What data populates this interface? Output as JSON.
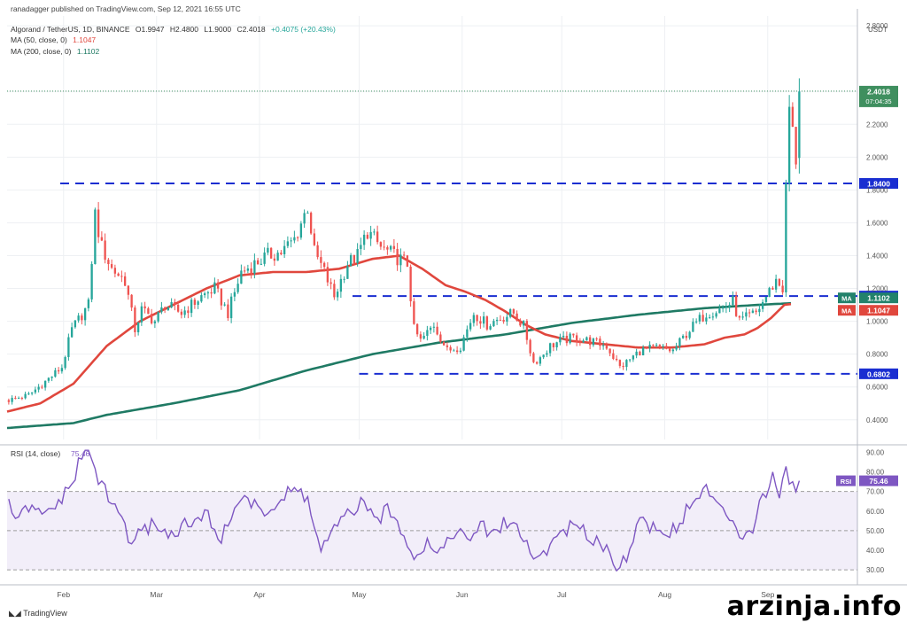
{
  "header": {
    "published": "ranadagger published on TradingView.com, Sep 12, 2021 16:55 UTC",
    "symbol_line": "Algorand / TetherUS, 1D, BINANCE",
    "ohlc": {
      "o": "O1.9947",
      "h": "H2.4800",
      "l": "L1.9000",
      "c": "C2.4018",
      "chg": "+0.4075 (+20.43%)"
    },
    "ma50_label": "MA (50, close, 0)",
    "ma50_value": "1.1047",
    "ma200_label": "MA (200, close, 0)",
    "ma200_value": "1.1102"
  },
  "footer": {
    "logo_text": "TradingView",
    "watermark": "arzinja.info"
  },
  "chart_data": [
    {
      "type": "candlestick",
      "currency": "USDT",
      "ylim": [
        0.28,
        2.86
      ],
      "y_ticks": [
        "2.8000",
        "2.4000",
        "2.2000",
        "2.0000",
        "1.8000",
        "1.6000",
        "1.4000",
        "1.2000",
        "1.0000",
        "0.8000",
        "0.6000",
        "0.4000"
      ],
      "x_ticks": [
        {
          "label": "Feb",
          "day": 17
        },
        {
          "label": "Mar",
          "day": 45
        },
        {
          "label": "Apr",
          "day": 76
        },
        {
          "label": "May",
          "day": 106
        },
        {
          "label": "Jun",
          "day": 137
        },
        {
          "label": "Jul",
          "day": 167
        },
        {
          "label": "Aug",
          "day": 198
        },
        {
          "label": "Sep",
          "day": 229
        }
      ],
      "days_total": 256,
      "close_anchors": [
        [
          0,
          0.52
        ],
        [
          6,
          0.55
        ],
        [
          12,
          0.65
        ],
        [
          16,
          0.72
        ],
        [
          19,
          0.95
        ],
        [
          24,
          1.1
        ],
        [
          26,
          1.65
        ],
        [
          28,
          1.45
        ],
        [
          31,
          1.32
        ],
        [
          35,
          1.25
        ],
        [
          38,
          0.95
        ],
        [
          40,
          1.07
        ],
        [
          44,
          1.0
        ],
        [
          47,
          1.1
        ],
        [
          52,
          1.05
        ],
        [
          58,
          1.15
        ],
        [
          62,
          1.2
        ],
        [
          66,
          1.05
        ],
        [
          70,
          1.3
        ],
        [
          74,
          1.35
        ],
        [
          78,
          1.4
        ],
        [
          82,
          1.42
        ],
        [
          86,
          1.5
        ],
        [
          90,
          1.7
        ],
        [
          92,
          1.42
        ],
        [
          95,
          1.3
        ],
        [
          98,
          1.15
        ],
        [
          102,
          1.35
        ],
        [
          105,
          1.4
        ],
        [
          108,
          1.55
        ],
        [
          112,
          1.45
        ],
        [
          116,
          1.4
        ],
        [
          120,
          1.35
        ],
        [
          122,
          0.95
        ],
        [
          124,
          0.88
        ],
        [
          128,
          0.98
        ],
        [
          132,
          0.82
        ],
        [
          136,
          0.85
        ],
        [
          140,
          1.05
        ],
        [
          144,
          0.98
        ],
        [
          148,
          1.02
        ],
        [
          152,
          1.05
        ],
        [
          155,
          0.97
        ],
        [
          158,
          0.75
        ],
        [
          160,
          0.78
        ],
        [
          163,
          0.85
        ],
        [
          166,
          0.88
        ],
        [
          170,
          0.9
        ],
        [
          175,
          0.88
        ],
        [
          180,
          0.85
        ],
        [
          184,
          0.72
        ],
        [
          186,
          0.75
        ],
        [
          190,
          0.82
        ],
        [
          195,
          0.84
        ],
        [
          200,
          0.82
        ],
        [
          205,
          0.95
        ],
        [
          210,
          1.05
        ],
        [
          215,
          1.08
        ],
        [
          218,
          1.12
        ],
        [
          220,
          1.0
        ],
        [
          225,
          1.05
        ],
        [
          228,
          1.15
        ],
        [
          231,
          1.25
        ],
        [
          233,
          1.2
        ],
        [
          234,
          1.8
        ],
        [
          235,
          2.3
        ],
        [
          237,
          1.99
        ],
        [
          238,
          2.4
        ]
      ],
      "ma50_anchors": [
        [
          0,
          0.45
        ],
        [
          10,
          0.5
        ],
        [
          20,
          0.62
        ],
        [
          30,
          0.85
        ],
        [
          40,
          1.0
        ],
        [
          50,
          1.1
        ],
        [
          60,
          1.2
        ],
        [
          70,
          1.28
        ],
        [
          80,
          1.3
        ],
        [
          90,
          1.3
        ],
        [
          100,
          1.32
        ],
        [
          110,
          1.38
        ],
        [
          118,
          1.4
        ],
        [
          125,
          1.32
        ],
        [
          132,
          1.22
        ],
        [
          138,
          1.18
        ],
        [
          144,
          1.13
        ],
        [
          150,
          1.06
        ],
        [
          156,
          0.98
        ],
        [
          162,
          0.92
        ],
        [
          170,
          0.88
        ],
        [
          180,
          0.86
        ],
        [
          190,
          0.84
        ],
        [
          200,
          0.84
        ],
        [
          210,
          0.86
        ],
        [
          216,
          0.9
        ],
        [
          222,
          0.92
        ],
        [
          226,
          0.96
        ],
        [
          230,
          1.02
        ],
        [
          234,
          1.1
        ],
        [
          236,
          1.1047
        ]
      ],
      "ma200_anchors": [
        [
          0,
          0.35
        ],
        [
          20,
          0.38
        ],
        [
          30,
          0.43
        ],
        [
          50,
          0.5
        ],
        [
          70,
          0.58
        ],
        [
          90,
          0.7
        ],
        [
          110,
          0.8
        ],
        [
          130,
          0.87
        ],
        [
          150,
          0.92
        ],
        [
          170,
          0.99
        ],
        [
          190,
          1.04
        ],
        [
          210,
          1.08
        ],
        [
          226,
          1.1
        ],
        [
          236,
          1.1102
        ]
      ],
      "levels": [
        {
          "value": 1.84,
          "label": "1.8400",
          "from_day": 16
        },
        {
          "value": 1.1537,
          "label": "1.1537",
          "from_day": 104
        },
        {
          "value": 0.6802,
          "label": "0.6802",
          "from_day": 106
        }
      ],
      "price_tags": [
        {
          "value": 2.4018,
          "label": "2.4018",
          "sub": "07:04:35",
          "color": "#3f8f5f"
        },
        {
          "value": 1.1102,
          "label": "1.1102",
          "tag": "MA",
          "color": "#22826b"
        },
        {
          "value": 1.1047,
          "label": "1.1047",
          "tag": "MA",
          "color": "#e0473d"
        }
      ],
      "colors": {
        "up": "#26a69a",
        "down": "#ef5350",
        "ma50": "#e0473d",
        "ma200": "#1f7a64",
        "level": "#1a2ed1"
      }
    },
    {
      "type": "line",
      "title": "RSI (14, close)",
      "current": "75.46",
      "ylim": [
        26,
        92
      ],
      "y_ticks": [
        "90.00",
        "80.00",
        "70.00",
        "60.00",
        "50.00",
        "40.00",
        "30.00"
      ],
      "bands": {
        "upper": 70,
        "lower": 30,
        "mid": 50
      },
      "rsi_anchors": [
        [
          0,
          63
        ],
        [
          3,
          55
        ],
        [
          6,
          62
        ],
        [
          10,
          57
        ],
        [
          14,
          63
        ],
        [
          18,
          70
        ],
        [
          22,
          88
        ],
        [
          24,
          90
        ],
        [
          27,
          77
        ],
        [
          30,
          66
        ],
        [
          34,
          58
        ],
        [
          36,
          45
        ],
        [
          40,
          48
        ],
        [
          44,
          55
        ],
        [
          48,
          47
        ],
        [
          52,
          52
        ],
        [
          56,
          54
        ],
        [
          60,
          58
        ],
        [
          64,
          45
        ],
        [
          68,
          62
        ],
        [
          70,
          68
        ],
        [
          74,
          62
        ],
        [
          78,
          60
        ],
        [
          82,
          65
        ],
        [
          86,
          72
        ],
        [
          90,
          66
        ],
        [
          92,
          52
        ],
        [
          94,
          40
        ],
        [
          98,
          50
        ],
        [
          102,
          58
        ],
        [
          106,
          64
        ],
        [
          110,
          55
        ],
        [
          114,
          60
        ],
        [
          118,
          52
        ],
        [
          122,
          38
        ],
        [
          126,
          44
        ],
        [
          130,
          40
        ],
        [
          134,
          50
        ],
        [
          138,
          45
        ],
        [
          142,
          52
        ],
        [
          146,
          48
        ],
        [
          150,
          55
        ],
        [
          154,
          50
        ],
        [
          158,
          35
        ],
        [
          162,
          40
        ],
        [
          166,
          50
        ],
        [
          170,
          52
        ],
        [
          174,
          48
        ],
        [
          178,
          45
        ],
        [
          181,
          38
        ],
        [
          184,
          31
        ],
        [
          186,
          38
        ],
        [
          190,
          55
        ],
        [
          194,
          52
        ],
        [
          198,
          47
        ],
        [
          202,
          55
        ],
        [
          206,
          64
        ],
        [
          210,
          72
        ],
        [
          214,
          60
        ],
        [
          218,
          57
        ],
        [
          220,
          48
        ],
        [
          224,
          52
        ],
        [
          226,
          64
        ],
        [
          230,
          76
        ],
        [
          232,
          70
        ],
        [
          234,
          83
        ],
        [
          236,
          72
        ],
        [
          238,
          75.46
        ]
      ],
      "color": "#7e57c2"
    }
  ]
}
